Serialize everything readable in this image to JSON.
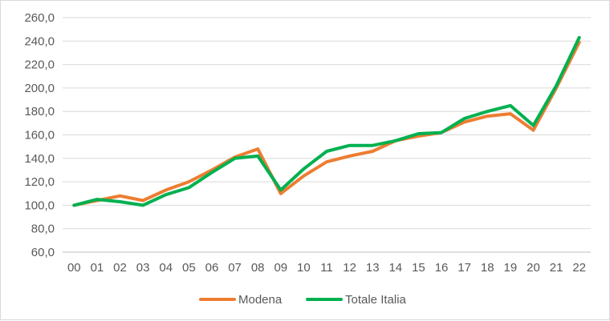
{
  "chart_data": {
    "type": "line",
    "x": [
      "00",
      "01",
      "02",
      "03",
      "04",
      "05",
      "06",
      "07",
      "08",
      "09",
      "10",
      "11",
      "12",
      "13",
      "14",
      "15",
      "16",
      "17",
      "18",
      "19",
      "20",
      "21",
      "22"
    ],
    "ylim": [
      60,
      260
    ],
    "yticks": [
      "60,0",
      "80,0",
      "100,0",
      "120,0",
      "140,0",
      "160,0",
      "180,0",
      "200,0",
      "220,0",
      "240,0",
      "260,0"
    ],
    "grid": "horizontal",
    "legend_position": "bottom",
    "series": [
      {
        "name": "Modena",
        "color": "#ED7D31",
        "values": [
          100,
          104,
          108,
          104,
          113,
          120,
          130,
          141,
          148,
          110,
          125,
          137,
          142,
          146,
          155,
          159,
          162,
          171,
          176,
          178,
          164,
          200,
          239
        ]
      },
      {
        "name": "Totale Italia",
        "color": "#00B050",
        "values": [
          100,
          105,
          103,
          100,
          109,
          115,
          128,
          140,
          142,
          113,
          131,
          146,
          151,
          151,
          155,
          161,
          162,
          174,
          180,
          185,
          168,
          202,
          243
        ]
      }
    ]
  }
}
